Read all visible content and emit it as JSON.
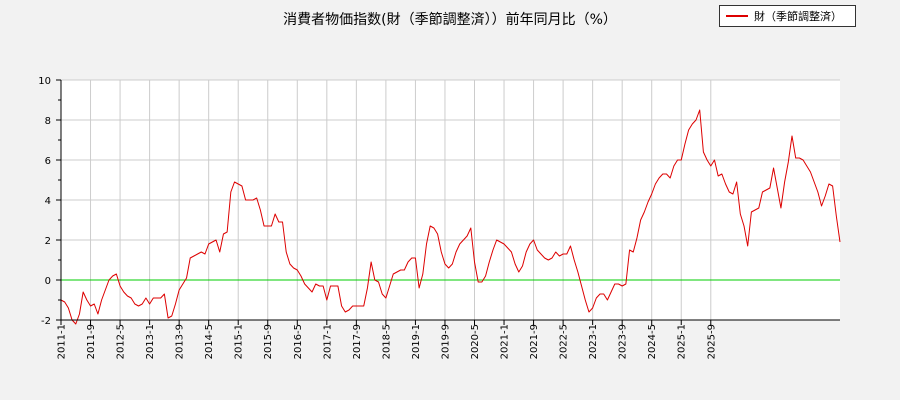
{
  "chart_data": {
    "type": "line",
    "title": "消費者物価指数(財（季節調整済））前年同月比（%）",
    "xlabel": "",
    "ylabel": "",
    "ylim": [
      -2,
      10
    ],
    "yticks": [
      -2,
      0,
      2,
      4,
      6,
      8,
      10
    ],
    "x_tick_labels": [
      "2011-1",
      "2011-9",
      "2012-5",
      "2013-1",
      "2013-9",
      "2014-5",
      "2015-1",
      "2015-9",
      "2016-5",
      "2017-1",
      "2017-9",
      "2018-5",
      "2019-1",
      "2019-9",
      "2020-5",
      "2021-1",
      "2021-9",
      "2022-5",
      "2023-1",
      "2023-9",
      "2024-5",
      "2025-1",
      "2025-9"
    ],
    "grid": true,
    "legend_position": "top-right",
    "reference_line": {
      "y": 0,
      "color": "#00cc00"
    },
    "series": [
      {
        "name": "財（季節調整済）",
        "color": "#dd0000",
        "x_start": "2011-01",
        "values": [
          -1.0,
          -1.1,
          -1.4,
          -2.0,
          -2.2,
          -1.7,
          -0.6,
          -1.0,
          -1.3,
          -1.2,
          -1.7,
          -1.0,
          -0.5,
          0.0,
          0.2,
          0.3,
          -0.3,
          -0.6,
          -0.8,
          -0.9,
          -1.2,
          -1.3,
          -1.2,
          -0.9,
          -1.2,
          -0.9,
          -0.9,
          -0.9,
          -0.7,
          -1.9,
          -1.8,
          -1.2,
          -0.5,
          -0.2,
          0.1,
          1.1,
          1.2,
          1.3,
          1.4,
          1.3,
          1.8,
          1.9,
          2.0,
          1.4,
          2.3,
          2.4,
          4.4,
          4.9,
          4.8,
          4.7,
          4.0,
          4.0,
          4.0,
          4.1,
          3.5,
          2.7,
          2.7,
          2.7,
          3.3,
          2.9,
          2.9,
          1.4,
          0.8,
          0.6,
          0.5,
          0.2,
          -0.2,
          -0.4,
          -0.6,
          -0.2,
          -0.3,
          -0.3,
          -1.0,
          -0.3,
          -0.3,
          -0.3,
          -1.3,
          -1.6,
          -1.5,
          -1.3,
          -1.3,
          -1.3,
          -1.3,
          -0.4,
          0.9,
          0.0,
          -0.1,
          -0.7,
          -0.9,
          -0.3,
          0.3,
          0.4,
          0.5,
          0.5,
          0.9,
          1.1,
          1.1,
          -0.4,
          0.3,
          1.8,
          2.7,
          2.6,
          2.3,
          1.4,
          0.8,
          0.6,
          0.8,
          1.4,
          1.8,
          2.0,
          2.2,
          2.6,
          0.9,
          -0.1,
          -0.1,
          0.2,
          0.9,
          1.5,
          2.0,
          1.9,
          1.8,
          1.6,
          1.4,
          0.8,
          0.4,
          0.7,
          1.4,
          1.8,
          2.0,
          1.5,
          1.3,
          1.1,
          1.0,
          1.1,
          1.4,
          1.2,
          1.3,
          1.3,
          1.7,
          1.0,
          0.4,
          -0.3,
          -1.0,
          -1.6,
          -1.4,
          -0.9,
          -0.7,
          -0.7,
          -1.0,
          -0.6,
          -0.2,
          -0.2,
          -0.3,
          -0.2,
          1.5,
          1.4,
          2.1,
          3.0,
          3.4,
          3.9,
          4.3,
          4.8,
          5.1,
          5.3,
          5.3,
          5.1,
          5.7,
          6.0,
          6.0,
          6.8,
          7.5,
          7.8,
          8.0,
          8.5,
          6.4,
          6.0,
          5.7,
          6.0,
          5.2,
          5.3,
          4.8,
          4.4,
          4.3,
          4.9,
          3.3,
          2.7,
          1.7,
          3.4,
          3.5,
          3.6,
          4.4,
          4.5,
          4.6,
          5.6,
          4.6,
          3.6,
          4.9,
          5.9,
          7.2,
          6.1,
          6.1,
          6.0,
          5.7,
          5.4,
          4.9,
          4.4,
          3.7,
          4.2,
          4.8,
          4.7,
          3.2,
          1.9
        ]
      }
    ]
  }
}
